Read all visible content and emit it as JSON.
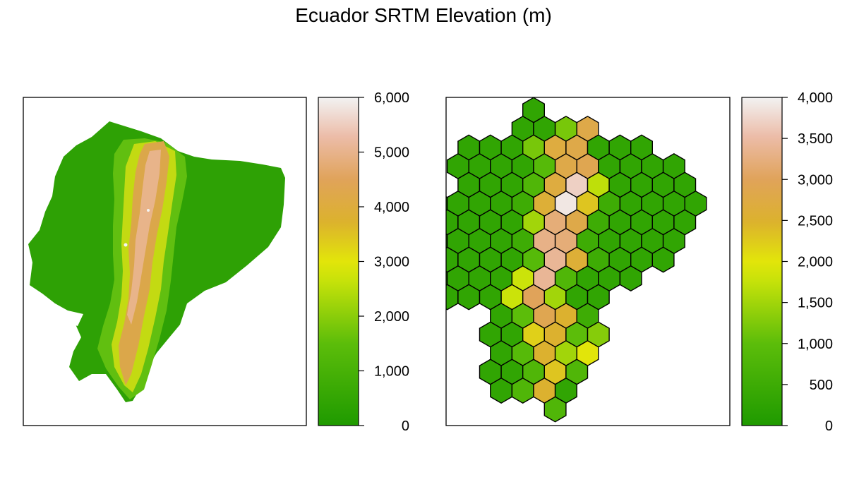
{
  "title": "Ecuador SRTM Elevation (m)",
  "left_panel": {
    "legend": {
      "min": 0,
      "max": 6000,
      "tick_values": [
        0,
        1000,
        2000,
        3000,
        4000,
        5000,
        6000
      ],
      "tick_labels": [
        "0",
        "1,000",
        "2,000",
        "3,000",
        "4,000",
        "5,000",
        "6,000"
      ]
    }
  },
  "right_panel": {
    "legend": {
      "min": 0,
      "max": 4000,
      "tick_values": [
        0,
        500,
        1000,
        1500,
        2000,
        2500,
        3000,
        3500,
        4000
      ],
      "tick_labels": [
        "0",
        "500",
        "1,000",
        "1,500",
        "2,000",
        "2,500",
        "3,000",
        "3,500",
        "4,000"
      ]
    },
    "hex_values": [
      [
        0,
        0,
        300
      ],
      [
        1,
        -0.5,
        300
      ],
      [
        1,
        0.5,
        300
      ],
      [
        1,
        1.5,
        1200
      ],
      [
        1,
        2.5,
        2800
      ],
      [
        2,
        -3,
        300
      ],
      [
        2,
        -2,
        300
      ],
      [
        2,
        -1,
        300
      ],
      [
        2,
        0,
        1200
      ],
      [
        2,
        1,
        2700
      ],
      [
        2,
        2,
        2800
      ],
      [
        2,
        3,
        300
      ],
      [
        2,
        4,
        300
      ],
      [
        2,
        5,
        300
      ],
      [
        3,
        -3.5,
        300
      ],
      [
        3,
        -2.5,
        300
      ],
      [
        3,
        -1.5,
        300
      ],
      [
        3,
        -0.5,
        300
      ],
      [
        3,
        0.5,
        900
      ],
      [
        3,
        1.5,
        2800
      ],
      [
        3,
        2.5,
        2900
      ],
      [
        3,
        3.5,
        300
      ],
      [
        3,
        4.5,
        300
      ],
      [
        3,
        5.5,
        300
      ],
      [
        3,
        6.5,
        300
      ],
      [
        4,
        -3,
        300
      ],
      [
        4,
        -2,
        300
      ],
      [
        4,
        -1,
        300
      ],
      [
        4,
        0,
        800
      ],
      [
        4,
        1,
        2700
      ],
      [
        4,
        2,
        3700
      ],
      [
        4,
        3,
        1700
      ],
      [
        4,
        4,
        300
      ],
      [
        4,
        5,
        300
      ],
      [
        4,
        6,
        300
      ],
      [
        4,
        7,
        300
      ],
      [
        5,
        -4.5,
        300
      ],
      [
        5,
        -3.5,
        300
      ],
      [
        5,
        -2.5,
        300
      ],
      [
        5,
        -1.5,
        300
      ],
      [
        5,
        -0.5,
        500
      ],
      [
        5,
        0.5,
        2600
      ],
      [
        5,
        1.5,
        3900
      ],
      [
        5,
        2.5,
        2300
      ],
      [
        5,
        3.5,
        500
      ],
      [
        5,
        4.5,
        300
      ],
      [
        5,
        5.5,
        300
      ],
      [
        5,
        6.5,
        300
      ],
      [
        5,
        7.5,
        300
      ],
      [
        6,
        -4,
        300
      ],
      [
        6,
        -3,
        300
      ],
      [
        6,
        -2,
        300
      ],
      [
        6,
        -1,
        300
      ],
      [
        6,
        0,
        1500
      ],
      [
        6,
        1,
        3200
      ],
      [
        6,
        2,
        2800
      ],
      [
        6,
        3,
        500
      ],
      [
        6,
        4,
        300
      ],
      [
        6,
        5,
        300
      ],
      [
        6,
        6,
        300
      ],
      [
        6,
        7,
        300
      ],
      [
        7,
        -4.5,
        300
      ],
      [
        7,
        -3.5,
        300
      ],
      [
        7,
        -2.5,
        300
      ],
      [
        7,
        -1.5,
        300
      ],
      [
        7,
        -0.5,
        500
      ],
      [
        7,
        0.5,
        3300
      ],
      [
        7,
        1.5,
        3200
      ],
      [
        7,
        2.5,
        500
      ],
      [
        7,
        3.5,
        300
      ],
      [
        7,
        4.5,
        300
      ],
      [
        7,
        5.5,
        300
      ],
      [
        7,
        6.5,
        300
      ],
      [
        8,
        -4,
        300
      ],
      [
        8,
        -3,
        300
      ],
      [
        8,
        -2,
        300
      ],
      [
        8,
        -1,
        300
      ],
      [
        8,
        0,
        900
      ],
      [
        8,
        1,
        3400
      ],
      [
        8,
        2,
        2600
      ],
      [
        8,
        3,
        500
      ],
      [
        8,
        4,
        300
      ],
      [
        8,
        5,
        300
      ],
      [
        8,
        6,
        300
      ],
      [
        9,
        -4.5,
        300
      ],
      [
        9,
        -3.5,
        300
      ],
      [
        9,
        -2.5,
        300
      ],
      [
        9,
        -1.5,
        300
      ],
      [
        9,
        -0.5,
        1800
      ],
      [
        9,
        0.5,
        3400
      ],
      [
        9,
        1.5,
        800
      ],
      [
        9,
        2.5,
        300
      ],
      [
        9,
        3.5,
        300
      ],
      [
        9,
        4.5,
        300
      ],
      [
        10,
        -4,
        300
      ],
      [
        10,
        -3,
        300
      ],
      [
        10,
        -2,
        300
      ],
      [
        10,
        -1,
        1800
      ],
      [
        10,
        0,
        3000
      ],
      [
        10,
        1,
        1500
      ],
      [
        10,
        2,
        300
      ],
      [
        10,
        3,
        300
      ],
      [
        11,
        -1.5,
        300
      ],
      [
        11,
        -0.5,
        1000
      ],
      [
        11,
        0.5,
        2900
      ],
      [
        11,
        1.5,
        2500
      ],
      [
        11,
        2.5,
        500
      ],
      [
        12,
        -2,
        300
      ],
      [
        12,
        -1,
        300
      ],
      [
        12,
        0,
        2200
      ],
      [
        12,
        1,
        2500
      ],
      [
        12,
        2,
        1000
      ],
      [
        12,
        3,
        1300
      ],
      [
        13,
        -1.5,
        300
      ],
      [
        13,
        -0.5,
        900
      ],
      [
        13,
        0.5,
        2500
      ],
      [
        13,
        1.5,
        1500
      ],
      [
        13,
        2.5,
        2000
      ],
      [
        14,
        -2,
        300
      ],
      [
        14,
        -1,
        300
      ],
      [
        14,
        0,
        800
      ],
      [
        14,
        1,
        2300
      ],
      [
        14,
        2,
        800
      ],
      [
        15,
        -1.5,
        300
      ],
      [
        15,
        -0.5,
        800
      ],
      [
        15,
        0.5,
        2500
      ],
      [
        15,
        1.5,
        300
      ],
      [
        16,
        1,
        800
      ]
    ]
  },
  "colors": {
    "frame": "#000000",
    "hex_stroke": "#000000"
  }
}
